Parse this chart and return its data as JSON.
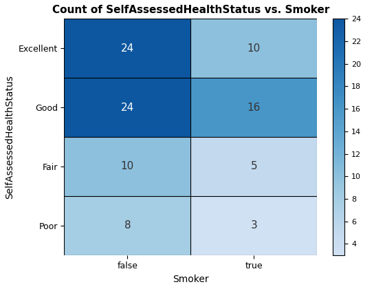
{
  "title": "Count of SelfAssessedHealthStatus vs. Smoker",
  "xlabel": "Smoker",
  "ylabel": "SelfAssessedHealthStatus",
  "x_labels": [
    "false",
    "true"
  ],
  "y_labels": [
    "Excellent",
    "Good",
    "Fair",
    "Poor"
  ],
  "values": [
    [
      24,
      10
    ],
    [
      24,
      16
    ],
    [
      10,
      5
    ],
    [
      8,
      3
    ]
  ],
  "vmin": 3,
  "vmax": 24,
  "colorbar_ticks": [
    4,
    6,
    8,
    10,
    12,
    14,
    16,
    18,
    20,
    22,
    24
  ],
  "cmap": "Blues",
  "annotation_color_threshold": 20,
  "title_fontsize": 11,
  "label_fontsize": 10,
  "tick_fontsize": 9,
  "annotation_fontsize": 11,
  "colorbar_fontsize": 8,
  "background_color": "#ffffff",
  "figwidth": 5.6,
  "figheight": 4.2
}
